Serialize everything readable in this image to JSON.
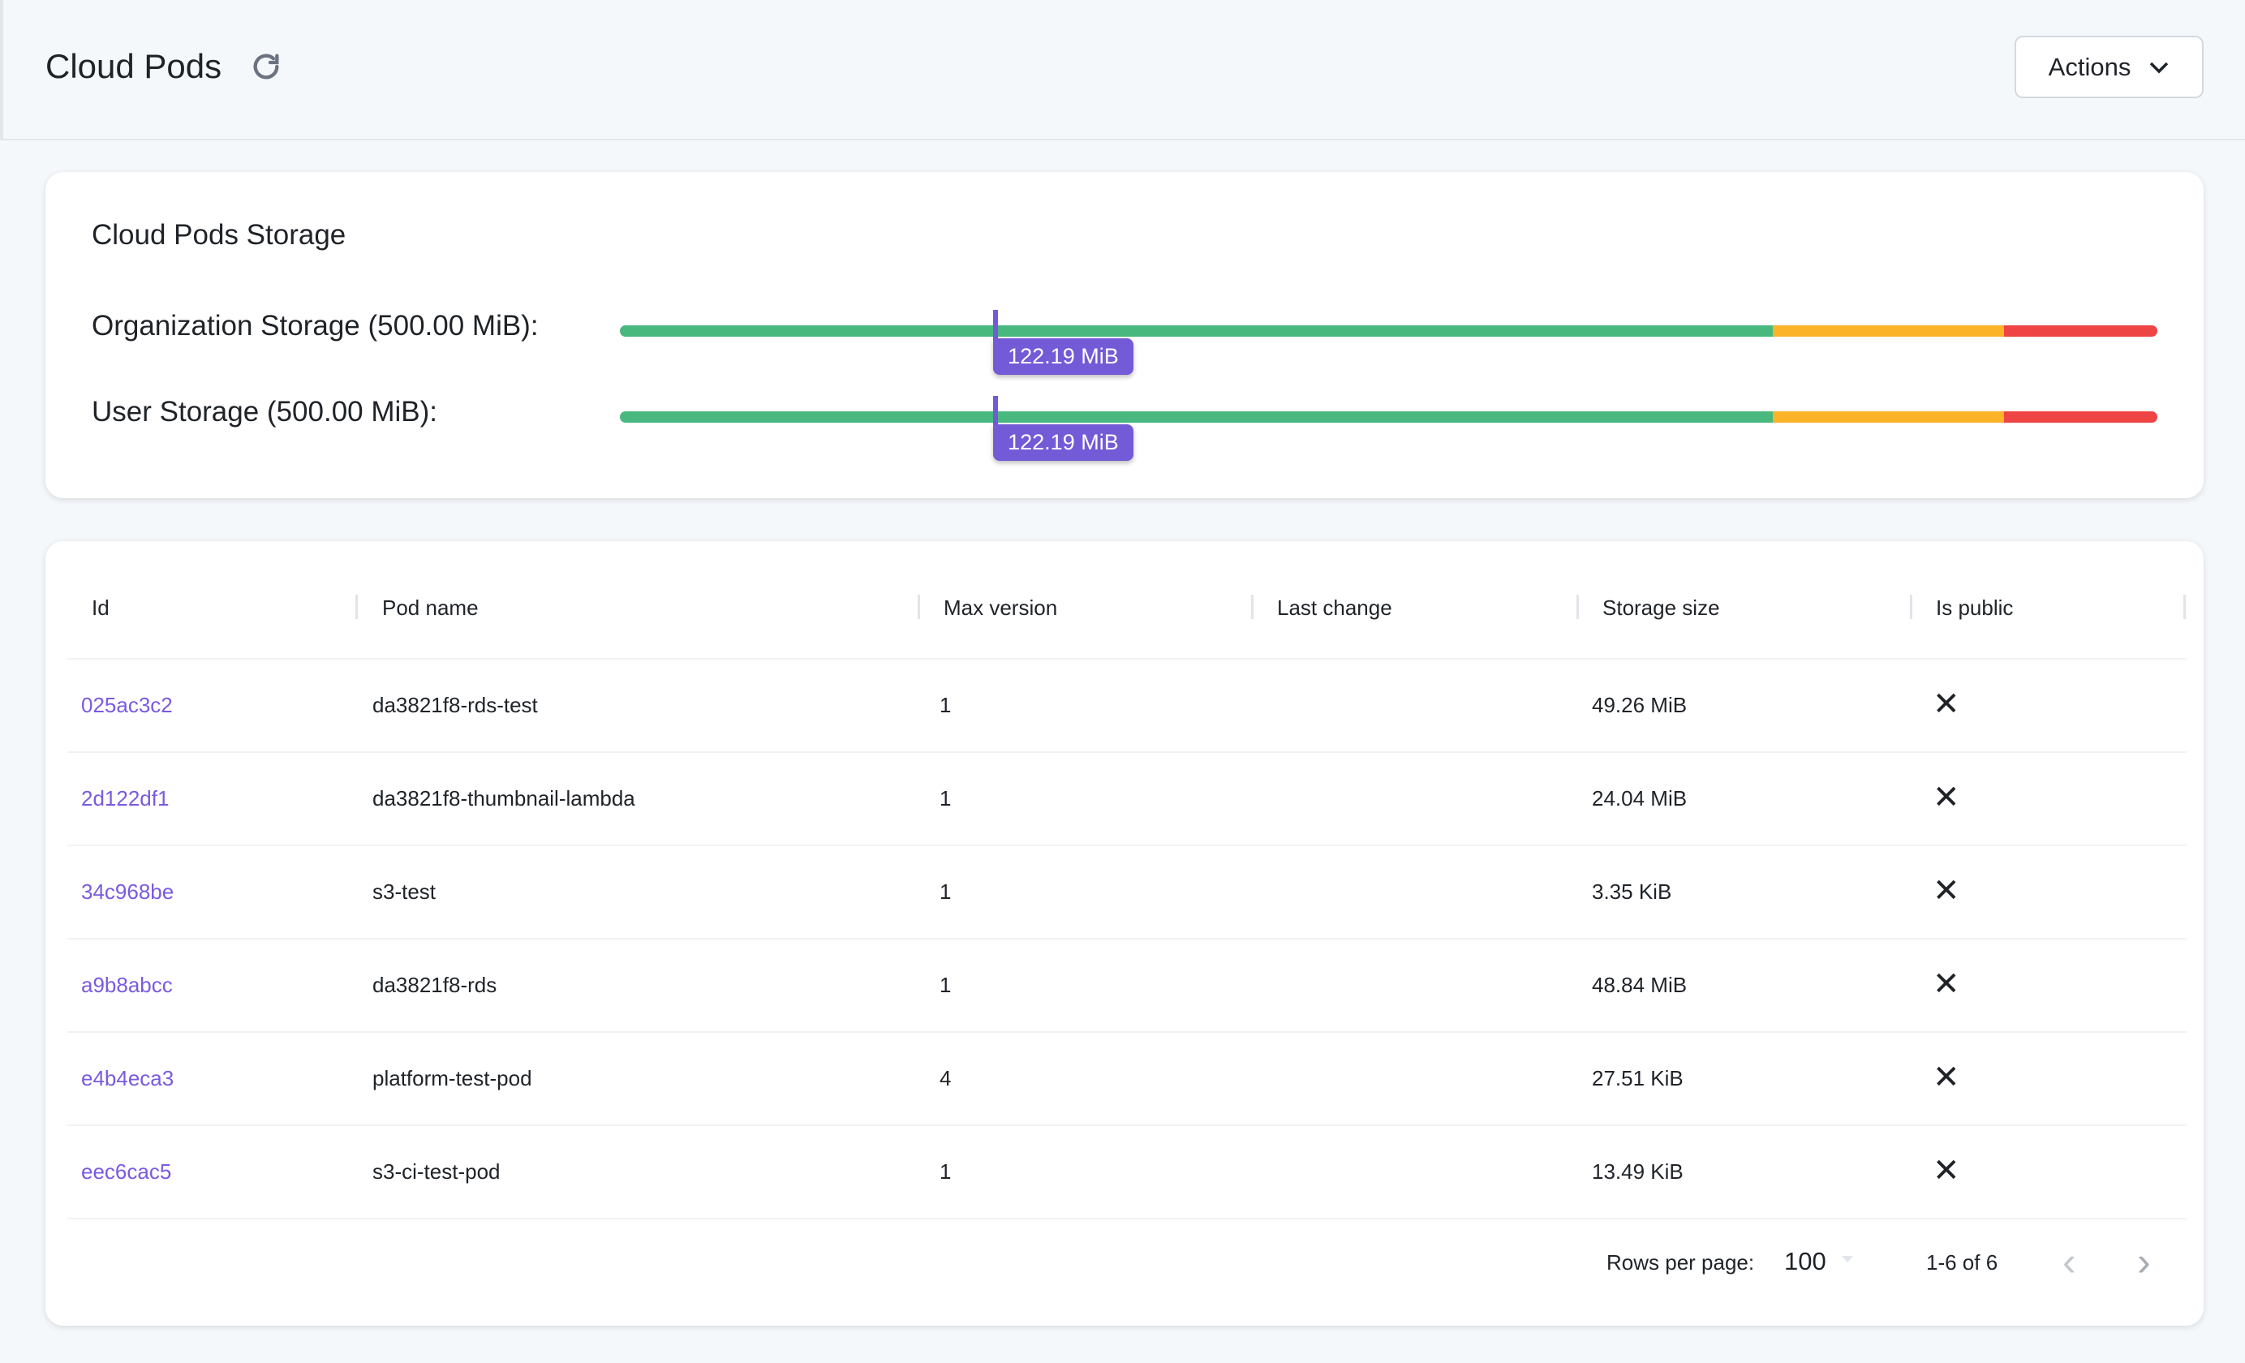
{
  "header": {
    "title": "Cloud Pods",
    "refresh_icon": "refresh-icon",
    "actions_label": "Actions"
  },
  "storage": {
    "title": "Cloud Pods Storage",
    "colors": {
      "ok": "#48b87f",
      "warn": "#fbb32a",
      "danger": "#ef4444",
      "marker": "#735ad6"
    },
    "bars": [
      {
        "label": "Organization Storage (500.00 MiB):",
        "value_label": "122.19 MiB",
        "used_fraction": 0.2444
      },
      {
        "label": "User Storage (500.00 MiB):",
        "value_label": "122.19 MiB",
        "used_fraction": 0.2444
      }
    ]
  },
  "table": {
    "columns": [
      "Id",
      "Pod name",
      "Max version",
      "Last change",
      "Storage size",
      "Is public"
    ],
    "rows": [
      {
        "id": "025ac3c2",
        "name": "da3821f8-rds-test",
        "max_version": "1",
        "last_change": "",
        "size": "49.26 MiB",
        "is_public": "✕"
      },
      {
        "id": "2d122df1",
        "name": "da3821f8-thumbnail-lambda",
        "max_version": "1",
        "last_change": "",
        "size": "24.04 MiB",
        "is_public": "✕"
      },
      {
        "id": "34c968be",
        "name": "s3-test",
        "max_version": "1",
        "last_change": "",
        "size": "3.35 KiB",
        "is_public": "✕"
      },
      {
        "id": "a9b8abcc",
        "name": "da3821f8-rds",
        "max_version": "1",
        "last_change": "",
        "size": "48.84 MiB",
        "is_public": "✕"
      },
      {
        "id": "e4b4eca3",
        "name": "platform-test-pod",
        "max_version": "4",
        "last_change": "",
        "size": "27.51 KiB",
        "is_public": "✕"
      },
      {
        "id": "eec6cac5",
        "name": "s3-ci-test-pod",
        "max_version": "1",
        "last_change": "",
        "size": "13.49 KiB",
        "is_public": "✕"
      }
    ],
    "footer": {
      "rows_per_page_label": "Rows per page:",
      "rows_per_page": "100",
      "range": "1-6 of 6",
      "prev": "‹",
      "next": "›"
    }
  }
}
